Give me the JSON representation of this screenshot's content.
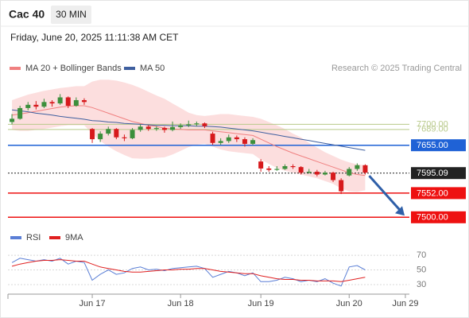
{
  "header": {
    "title": "Cac 40",
    "interval": "30 MIN",
    "datetime": "Friday, June 20, 2025 11:11:38 AM CET"
  },
  "chart_data": [
    {
      "type": "candlestick",
      "attribution": "Research © 2025 Trading Central",
      "categories": [
        null,
        null,
        null,
        null,
        null,
        null,
        null,
        null,
        null,
        null,
        "Jun 17",
        null,
        null,
        null,
        null,
        null,
        null,
        null,
        null,
        null,
        null,
        "Jun 18",
        null,
        null,
        null,
        null,
        null,
        null,
        null,
        null,
        null,
        "Jun 19",
        null,
        null,
        null,
        null,
        null,
        null,
        null,
        null,
        null,
        null,
        "Jun 20",
        null,
        null,
        null,
        null,
        null,
        null,
        "Jun 29"
      ],
      "open": [
        7705,
        7712,
        7735,
        7742,
        7738,
        7748,
        7745,
        7758,
        7740,
        7752,
        7690,
        7668,
        7680,
        7690,
        7672,
        7670,
        7688,
        7695,
        7690,
        7692,
        7688,
        7694,
        7698,
        7700,
        7702,
        7680,
        7660,
        7664,
        7672,
        7668,
        7658,
        7620,
        7605,
        7602,
        7604,
        7610,
        7608,
        7596,
        7598,
        7592,
        7596,
        7580,
        7590,
        7604,
        7612,
        null,
        null,
        null,
        null,
        null
      ],
      "high": [
        7722,
        7740,
        7748,
        7750,
        7755,
        7752,
        7765,
        7760,
        7758,
        7756,
        7692,
        7685,
        7695,
        7692,
        7678,
        7692,
        7700,
        7698,
        7696,
        7695,
        7706,
        7702,
        7708,
        7706,
        7704,
        7684,
        7670,
        7678,
        7676,
        7672,
        7670,
        7625,
        7610,
        7610,
        7614,
        7614,
        7610,
        7604,
        7602,
        7600,
        7598,
        7584,
        7608,
        7616,
        7614,
        null,
        null,
        null,
        null,
        null
      ],
      "low": [
        7700,
        7710,
        7730,
        7732,
        7735,
        7738,
        7742,
        7735,
        7738,
        7742,
        7660,
        7662,
        7676,
        7668,
        7664,
        7668,
        7684,
        7686,
        7686,
        7682,
        7685,
        7690,
        7694,
        7696,
        7692,
        7656,
        7656,
        7660,
        7662,
        7652,
        7655,
        7598,
        7598,
        7600,
        7602,
        7604,
        7592,
        7594,
        7588,
        7590,
        7576,
        7550,
        7588,
        7600,
        7592,
        null,
        null,
        null,
        null,
        null
      ],
      "close": [
        7712,
        7735,
        7742,
        7738,
        7748,
        7745,
        7758,
        7740,
        7752,
        7748,
        7668,
        7680,
        7690,
        7672,
        7670,
        7688,
        7695,
        7690,
        7692,
        7688,
        7694,
        7698,
        7700,
        7702,
        7696,
        7660,
        7664,
        7672,
        7668,
        7658,
        7666,
        7605,
        7602,
        7604,
        7610,
        7608,
        7596,
        7598,
        7592,
        7596,
        7580,
        7556,
        7604,
        7612,
        7596,
        null,
        null,
        null,
        null,
        null
      ],
      "up_color": "#3c8f3c",
      "down_color": "#d7191c",
      "ylim": [
        7480,
        7805
      ],
      "overlays": [
        {
          "name": "MA 20 + Bollinger Bands",
          "color": "#f08080",
          "band_color": "#fbd3d3",
          "values": [
            7720,
            7722,
            7725,
            7728,
            7731,
            7734,
            7737,
            7739,
            7740,
            7740,
            7736,
            7730,
            7724,
            7718,
            7712,
            7706,
            7702,
            7698,
            7695,
            7692,
            7690,
            7689,
            7688,
            7688,
            7688,
            7686,
            7684,
            7682,
            7680,
            7678,
            7676,
            7668,
            7660,
            7652,
            7645,
            7638,
            7632,
            7626,
            7620,
            7614,
            7608,
            7602,
            7596,
            7592,
            7590,
            null,
            null,
            null,
            null,
            null
          ],
          "upper": [
            7752,
            7758,
            7764,
            7768,
            7772,
            7775,
            7778,
            7780,
            7782,
            7782,
            7792,
            7796,
            7796,
            7794,
            7790,
            7785,
            7778,
            7770,
            7762,
            7755,
            7745,
            7735,
            7725,
            7720,
            7718,
            7720,
            7722,
            7722,
            7720,
            7718,
            7716,
            7712,
            7705,
            7698,
            7690,
            7680,
            7672,
            7660,
            7650,
            7640,
            7632,
            7624,
            7618,
            7614,
            7612,
            null,
            null,
            null,
            null,
            null
          ],
          "lower": [
            7688,
            7686,
            7686,
            7688,
            7690,
            7693,
            7696,
            7698,
            7698,
            7698,
            7680,
            7664,
            7652,
            7642,
            7634,
            7627,
            7626,
            7626,
            7628,
            7629,
            7635,
            7643,
            7651,
            7656,
            7658,
            7652,
            7646,
            7642,
            7640,
            7638,
            7636,
            7624,
            7615,
            7606,
            7600,
            7596,
            7592,
            7588,
            7584,
            7578,
            7572,
            7562,
            7556,
            7555,
            7558,
            null,
            null,
            null,
            null,
            null
          ]
        },
        {
          "name": "MA 50",
          "color": "#3f5f9f",
          "values": [
            7731,
            7729,
            7727,
            7724,
            7722,
            7720,
            7717,
            7715,
            7713,
            7711,
            7708,
            7707,
            7705,
            7704,
            7702,
            7701,
            7700,
            7699,
            7698,
            7698,
            7697,
            7697,
            7697,
            7696,
            7696,
            7695,
            7694,
            7692,
            7690,
            7688,
            7686,
            7683,
            7680,
            7677,
            7674,
            7671,
            7668,
            7665,
            7662,
            7659,
            7656,
            7653,
            7650,
            7647,
            7644,
            null,
            null,
            null,
            null,
            null
          ]
        }
      ],
      "levels": [
        {
          "value": 7700,
          "label": "7700.00",
          "color": "#b8c98a",
          "box": false,
          "dotted": false
        },
        {
          "value": 7689,
          "label": "7689.00",
          "color": "#b8c98a",
          "box": false,
          "dotted": false
        },
        {
          "value": 7655,
          "label": "7655.00",
          "color": "#1f62d6",
          "box": true,
          "dotted": false
        },
        {
          "value": 7595.09,
          "label": "7595.09",
          "color": "#222222",
          "box": true,
          "dotted": true
        },
        {
          "value": 7552,
          "label": "7552.00",
          "color": "#ee1111",
          "box": true,
          "dotted": false
        },
        {
          "value": 7500,
          "label": "7500.00",
          "color": "#ee1111",
          "box": true,
          "dotted": false
        }
      ]
    },
    {
      "type": "line",
      "ylim": [
        17,
        82
      ],
      "yticks": [
        70,
        50,
        30
      ],
      "series": [
        {
          "name": "RSI",
          "color": "#5b7fd6",
          "values": [
            60,
            66,
            64,
            62,
            64,
            62,
            66,
            58,
            62,
            60,
            36,
            44,
            50,
            44,
            46,
            52,
            54,
            50,
            51,
            49,
            52,
            53,
            54,
            55,
            52,
            40,
            44,
            48,
            46,
            42,
            46,
            34,
            34,
            36,
            40,
            38,
            34,
            36,
            34,
            38,
            32,
            28,
            54,
            56,
            50,
            null,
            null,
            null,
            null,
            null
          ]
        },
        {
          "name": "9MA",
          "color": "#e02020",
          "values": [
            55,
            58,
            60,
            62,
            63,
            63,
            64,
            63,
            62,
            62,
            58,
            54,
            52,
            50,
            48,
            47,
            47,
            48,
            49,
            50,
            50,
            51,
            51,
            52,
            52,
            50,
            48,
            47,
            46,
            45,
            45,
            42,
            40,
            38,
            37,
            37,
            36,
            36,
            35,
            35,
            35,
            34,
            36,
            38,
            40,
            null,
            null,
            null,
            null,
            null
          ]
        }
      ]
    }
  ]
}
